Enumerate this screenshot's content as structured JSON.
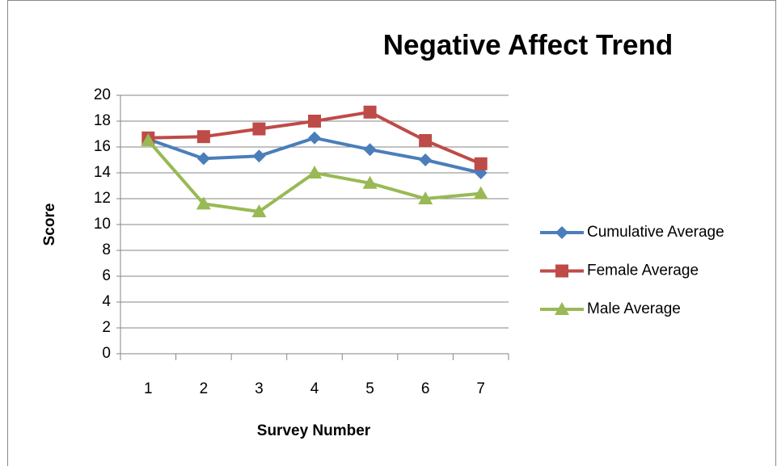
{
  "chart_data": {
    "type": "line",
    "title": "Negative Affect Trend",
    "x_label": "Survey Number",
    "y_label": "Score",
    "categories": [
      "1",
      "2",
      "3",
      "4",
      "5",
      "6",
      "7"
    ],
    "series": [
      {
        "name": "Cumulative Average",
        "color": "#4a7ebb",
        "marker": "diamond",
        "values": [
          16.6,
          15.1,
          15.3,
          16.7,
          15.8,
          15.0,
          14.0
        ]
      },
      {
        "name": "Female Average",
        "color": "#be4b48",
        "marker": "square",
        "values": [
          16.7,
          16.8,
          17.4,
          18.0,
          18.7,
          16.5,
          14.7
        ]
      },
      {
        "name": "Male Average",
        "color": "#98b954",
        "marker": "triangle",
        "values": [
          16.5,
          11.6,
          11.0,
          14.0,
          13.2,
          12.0,
          12.4
        ]
      }
    ],
    "ylim": [
      0,
      20
    ],
    "yticks": [
      0,
      2,
      4,
      6,
      8,
      10,
      12,
      14,
      16,
      18,
      20
    ],
    "grid": true,
    "legend": "right"
  }
}
